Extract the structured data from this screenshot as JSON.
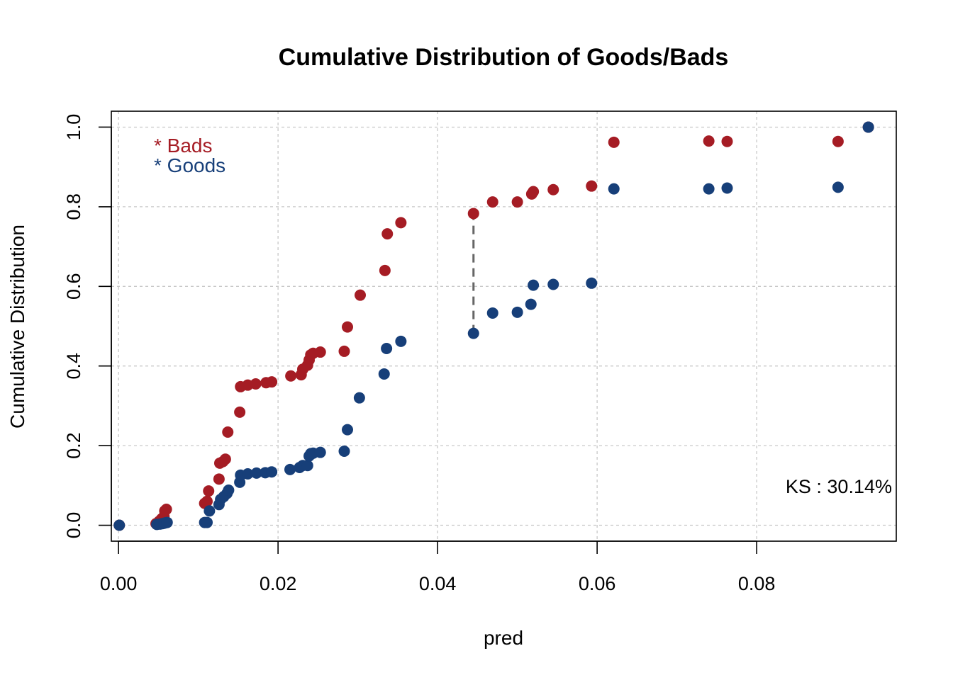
{
  "chart_data": {
    "type": "scatter",
    "title": "Cumulative Distribution of Goods/Bads",
    "xlabel": "pred",
    "ylabel": "Cumulative Distribution",
    "xlim": [
      -0.0009,
      0.0975
    ],
    "ylim": [
      -0.04,
      1.04
    ],
    "x_ticks": [
      0.0,
      0.02,
      0.04,
      0.06,
      0.08
    ],
    "x_tick_labels": [
      "0.00",
      "0.02",
      "0.04",
      "0.06",
      "0.08"
    ],
    "y_ticks": [
      0.0,
      0.2,
      0.4,
      0.6,
      0.8,
      1.0
    ],
    "y_tick_labels": [
      "0.0",
      "0.2",
      "0.4",
      "0.6",
      "0.8",
      "1.0"
    ],
    "grid": true,
    "legend": {
      "placement": "top-left",
      "entries": [
        {
          "label": "* Bads",
          "color": "#a51c24"
        },
        {
          "label": "* Goods",
          "color": "#173f79"
        }
      ]
    },
    "annotation": "KS : 30.14%",
    "ks_line": {
      "x": 0.0445,
      "y_from": 0.482,
      "y_to": 0.783
    },
    "series": [
      {
        "name": "Bads",
        "color": "#a51c24",
        "points": [
          [
            0.0001,
            0.0
          ],
          [
            0.0047,
            0.004
          ],
          [
            0.0051,
            0.01
          ],
          [
            0.0054,
            0.016
          ],
          [
            0.0057,
            0.022
          ],
          [
            0.0058,
            0.036
          ],
          [
            0.006,
            0.04
          ],
          [
            0.0108,
            0.055
          ],
          [
            0.0111,
            0.06
          ],
          [
            0.0113,
            0.086
          ],
          [
            0.0126,
            0.116
          ],
          [
            0.0127,
            0.156
          ],
          [
            0.0131,
            0.16
          ],
          [
            0.0134,
            0.166
          ],
          [
            0.0137,
            0.234
          ],
          [
            0.0152,
            0.284
          ],
          [
            0.0153,
            0.348
          ],
          [
            0.0162,
            0.352
          ],
          [
            0.0172,
            0.355
          ],
          [
            0.0185,
            0.358
          ],
          [
            0.0192,
            0.36
          ],
          [
            0.0216,
            0.375
          ],
          [
            0.0229,
            0.378
          ],
          [
            0.0231,
            0.392
          ],
          [
            0.0237,
            0.402
          ],
          [
            0.0239,
            0.415
          ],
          [
            0.0241,
            0.428
          ],
          [
            0.0244,
            0.432
          ],
          [
            0.0253,
            0.435
          ],
          [
            0.0283,
            0.437
          ],
          [
            0.0287,
            0.498
          ],
          [
            0.0303,
            0.578
          ],
          [
            0.0334,
            0.64
          ],
          [
            0.0337,
            0.732
          ],
          [
            0.0354,
            0.76
          ],
          [
            0.0445,
            0.783
          ],
          [
            0.0469,
            0.812
          ],
          [
            0.05,
            0.812
          ],
          [
            0.0518,
            0.832
          ],
          [
            0.052,
            0.838
          ],
          [
            0.0545,
            0.843
          ],
          [
            0.0593,
            0.852
          ],
          [
            0.0621,
            0.962
          ],
          [
            0.074,
            0.965
          ],
          [
            0.0763,
            0.964
          ],
          [
            0.0902,
            0.964
          ],
          [
            0.094,
            1.0
          ]
        ]
      },
      {
        "name": "Goods",
        "color": "#173f79",
        "points": [
          [
            0.0001,
            0.0
          ],
          [
            0.0048,
            0.002
          ],
          [
            0.0052,
            0.003
          ],
          [
            0.0055,
            0.004
          ],
          [
            0.0057,
            0.005
          ],
          [
            0.0059,
            0.006
          ],
          [
            0.0061,
            0.007
          ],
          [
            0.0108,
            0.007
          ],
          [
            0.0111,
            0.007
          ],
          [
            0.0114,
            0.036
          ],
          [
            0.0126,
            0.052
          ],
          [
            0.0128,
            0.065
          ],
          [
            0.0132,
            0.072
          ],
          [
            0.0136,
            0.08
          ],
          [
            0.0138,
            0.088
          ],
          [
            0.0152,
            0.108
          ],
          [
            0.0153,
            0.126
          ],
          [
            0.0162,
            0.129
          ],
          [
            0.0173,
            0.131
          ],
          [
            0.0184,
            0.132
          ],
          [
            0.0192,
            0.134
          ],
          [
            0.0215,
            0.14
          ],
          [
            0.0227,
            0.145
          ],
          [
            0.0231,
            0.15
          ],
          [
            0.0237,
            0.15
          ],
          [
            0.0239,
            0.174
          ],
          [
            0.0241,
            0.18
          ],
          [
            0.0244,
            0.181
          ],
          [
            0.0253,
            0.183
          ],
          [
            0.0283,
            0.186
          ],
          [
            0.0287,
            0.24
          ],
          [
            0.0302,
            0.32
          ],
          [
            0.0333,
            0.38
          ],
          [
            0.0336,
            0.444
          ],
          [
            0.0354,
            0.462
          ],
          [
            0.0445,
            0.482
          ],
          [
            0.0469,
            0.533
          ],
          [
            0.05,
            0.535
          ],
          [
            0.0517,
            0.555
          ],
          [
            0.052,
            0.603
          ],
          [
            0.0545,
            0.605
          ],
          [
            0.0593,
            0.608
          ],
          [
            0.0621,
            0.845
          ],
          [
            0.074,
            0.845
          ],
          [
            0.0763,
            0.847
          ],
          [
            0.0902,
            0.849
          ],
          [
            0.094,
            1.0
          ]
        ]
      }
    ]
  }
}
